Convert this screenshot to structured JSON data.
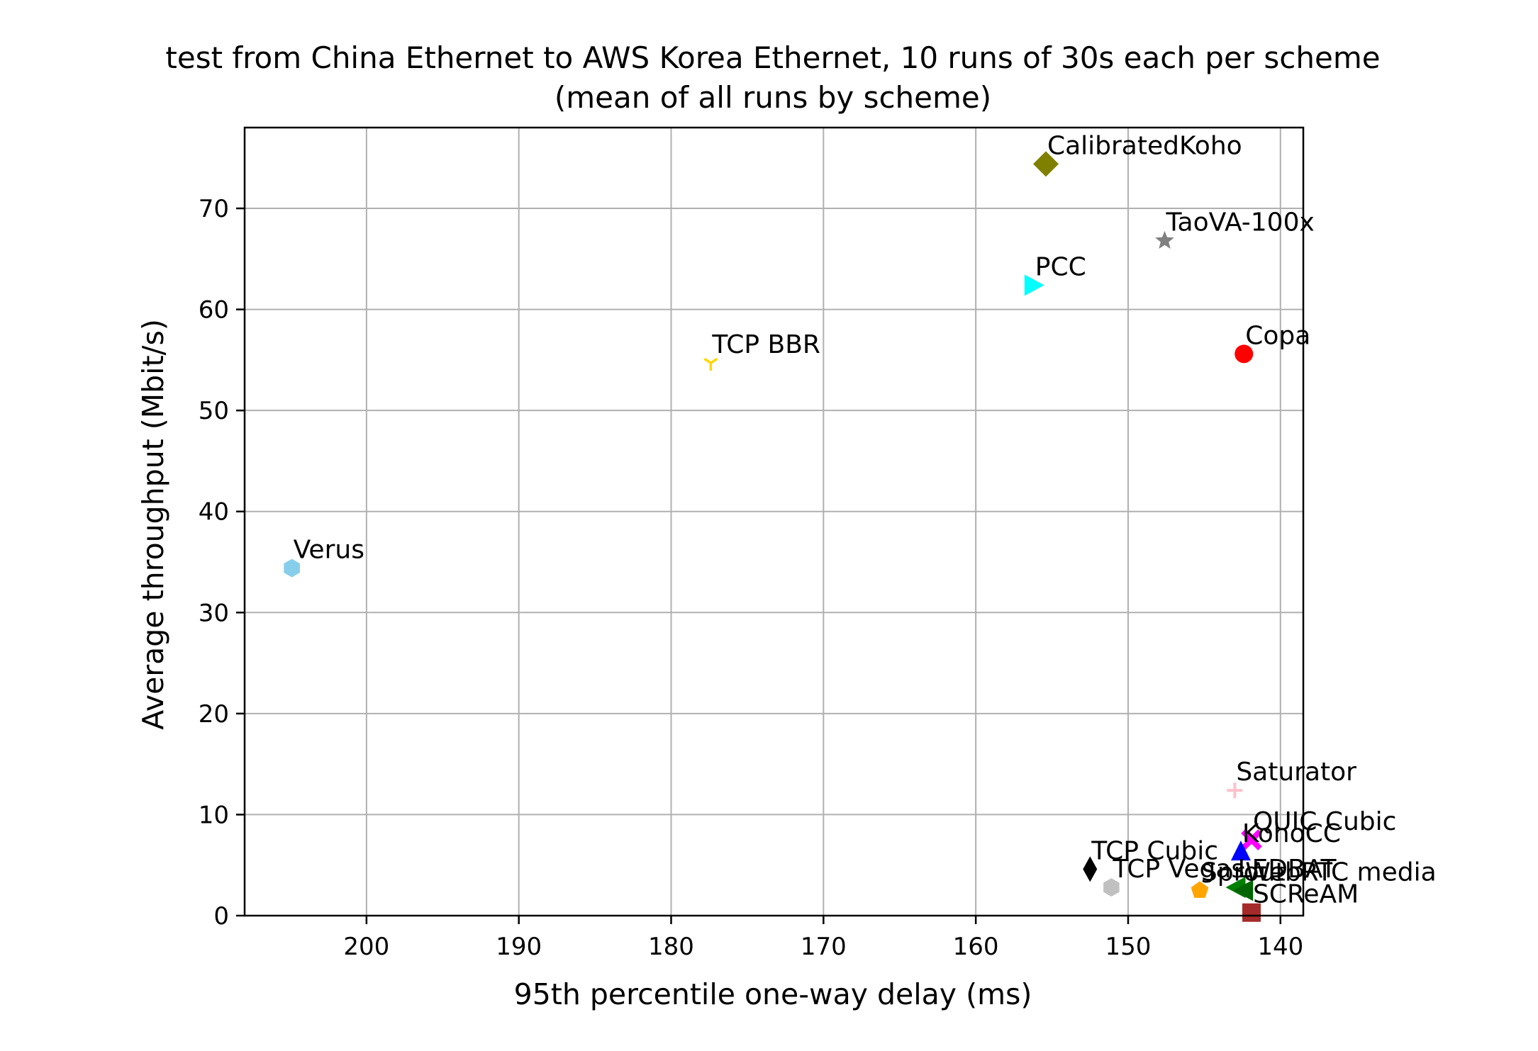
{
  "chart_data": {
    "type": "scatter",
    "title": "test from China Ethernet to AWS Korea Ethernet, 10 runs of 30s each per scheme",
    "subtitle": "(mean of all runs by scheme)",
    "xlabel": "95th percentile one-way delay (ms)",
    "ylabel": "Average throughput (Mbit/s)",
    "x_inverted": true,
    "xlim": [
      208,
      138.5
    ],
    "ylim": [
      0,
      78
    ],
    "grid": true,
    "legend": "none",
    "x_ticks": [
      200,
      190,
      180,
      170,
      160,
      150,
      140
    ],
    "y_ticks": [
      0,
      10,
      20,
      30,
      40,
      50,
      60,
      70
    ],
    "points": [
      {
        "label": "CalibratedKoho",
        "x": 155.4,
        "y": 74.4,
        "marker": "diamond",
        "color": "#808000"
      },
      {
        "label": "TaoVA-100x",
        "x": 147.6,
        "y": 66.8,
        "marker": "star",
        "color": "#808080"
      },
      {
        "label": "PCC",
        "x": 156.2,
        "y": 62.4,
        "marker": "triangle-right",
        "color": "#00ffff"
      },
      {
        "label": "Copa",
        "x": 142.4,
        "y": 55.6,
        "marker": "circle",
        "color": "#ff0000"
      },
      {
        "label": "TCP BBR",
        "x": 177.4,
        "y": 54.7,
        "marker": "tri-down",
        "color": "#ffd700"
      },
      {
        "label": "Verus",
        "x": 204.9,
        "y": 34.4,
        "marker": "hexagon",
        "color": "#87ceeb"
      },
      {
        "label": "Saturator",
        "x": 143.0,
        "y": 12.4,
        "marker": "plus",
        "color": "#ffc0cb"
      },
      {
        "label": "QUIC Cubic",
        "x": 141.9,
        "y": 7.5,
        "marker": "x",
        "color": "#ff00ff"
      },
      {
        "label": "KohoCC",
        "x": 142.6,
        "y": 6.3,
        "marker": "triangle-up",
        "color": "#0000ff"
      },
      {
        "label": "TCP Cubic",
        "x": 152.5,
        "y": 4.6,
        "marker": "thin-diamond",
        "color": "#000000"
      },
      {
        "label": "TCP Vegas",
        "x": 151.1,
        "y": 2.8,
        "marker": "hexagon",
        "color": "#c0c0c0"
      },
      {
        "label": "Sprout",
        "x": 145.3,
        "y": 2.5,
        "marker": "pentagon",
        "color": "#ffa500"
      },
      {
        "label": "LEDBAT",
        "x": 142.9,
        "y": 2.8,
        "marker": "triangle-left",
        "color": "#008000"
      },
      {
        "label": "WebRTC media",
        "x": 142.4,
        "y": 2.5,
        "marker": "triangle-left",
        "color": "#006400"
      },
      {
        "label": "SCReAM",
        "x": 141.9,
        "y": 0.3,
        "marker": "square",
        "color": "#a52a2a"
      }
    ]
  }
}
